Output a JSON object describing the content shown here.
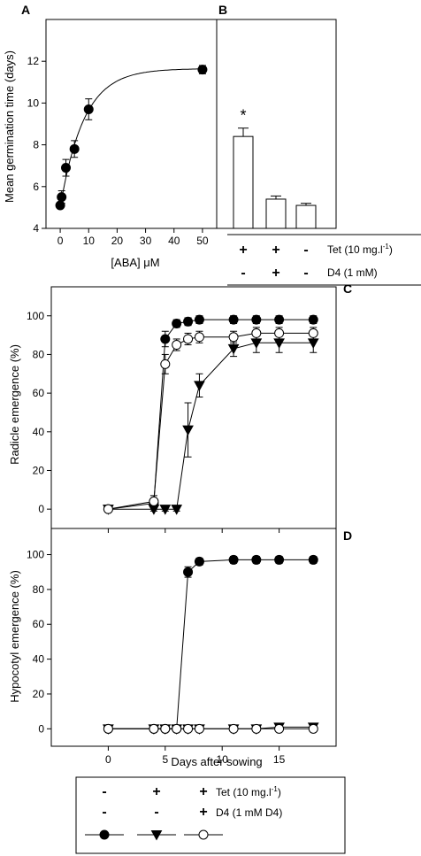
{
  "panel_letters": [
    "A",
    "B",
    "C",
    "D"
  ],
  "chart_data": [
    {
      "panel": "A",
      "type": "scatter",
      "xlabel": "[ABA] μM",
      "ylabel": "Mean germination time (days)",
      "xlim": [
        -5,
        55
      ],
      "ylim": [
        4,
        14
      ],
      "xticks": [
        0,
        10,
        20,
        30,
        40,
        50
      ],
      "yticks": [
        4,
        6,
        8,
        10,
        12
      ],
      "series": [
        {
          "marker": "filled-circle",
          "x": [
            0,
            0.5,
            2,
            5,
            10,
            50
          ],
          "y": [
            5.1,
            5.5,
            6.9,
            7.8,
            9.7,
            11.6
          ],
          "err": [
            0.1,
            0.3,
            0.4,
            0.4,
            0.5,
            0.2
          ],
          "fit": "saturating curve"
        }
      ],
      "grid": false
    },
    {
      "panel": "B",
      "type": "bar",
      "categories": [
        "Tet+ D4-",
        "Tet+ D4+",
        "Tet- D4-"
      ],
      "values": [
        8.4,
        5.4,
        5.1
      ],
      "err": [
        0.4,
        0.15,
        0.1
      ],
      "ylim": [
        4,
        14
      ],
      "significance": [
        "*",
        "",
        ""
      ],
      "treatment_table": {
        "rows": [
          {
            "label": "Tet (10 mg.l",
            "sup": "-1",
            "suffix": ")",
            "signs": [
              "+",
              "+",
              "-"
            ]
          },
          {
            "label": "D4 (1 mM)",
            "sup": "",
            "suffix": "",
            "signs": [
              "-",
              "+",
              "-"
            ]
          }
        ]
      }
    },
    {
      "panel": "C",
      "type": "line",
      "ylabel": "Radicle emergence (%)",
      "xlim": [
        -5,
        20
      ],
      "ylim": [
        -10,
        115
      ],
      "yticks": [
        0,
        20,
        40,
        60,
        80,
        100
      ],
      "series": [
        {
          "marker": "filled-circle",
          "x": [
            0,
            4,
            5,
            6,
            7,
            8,
            11,
            13,
            15,
            18
          ],
          "y": [
            0,
            3,
            88,
            96,
            97,
            98,
            98,
            98,
            98,
            98
          ],
          "err": [
            0,
            2,
            4,
            2,
            2,
            2,
            2,
            2,
            2,
            2
          ]
        },
        {
          "marker": "filled-triangle-down",
          "x": [
            0,
            4,
            5,
            6,
            7,
            8,
            11,
            13,
            15,
            18
          ],
          "y": [
            0,
            0,
            0,
            0,
            41,
            64,
            83,
            86,
            86,
            86
          ],
          "err": [
            0,
            1,
            1,
            1,
            14,
            6,
            4,
            5,
            5,
            5
          ]
        },
        {
          "marker": "open-circle",
          "x": [
            0,
            4,
            5,
            6,
            7,
            8,
            11,
            13,
            15,
            18
          ],
          "y": [
            0,
            4,
            75,
            85,
            88,
            89,
            89,
            91,
            91,
            91
          ],
          "err": [
            0,
            3,
            5,
            3,
            3,
            3,
            3,
            3,
            3,
            3
          ]
        }
      ]
    },
    {
      "panel": "D",
      "type": "line",
      "ylabel": "Hypocotyl emergence (%)",
      "xlabel": "Days after sowing",
      "xlim": [
        -5,
        20
      ],
      "ylim": [
        -10,
        115
      ],
      "xticks": [
        0,
        5,
        10,
        15
      ],
      "yticks": [
        0,
        20,
        40,
        60,
        80,
        100
      ],
      "series": [
        {
          "marker": "filled-circle",
          "x": [
            0,
            4,
            5,
            6,
            7,
            8,
            11,
            13,
            15,
            18
          ],
          "y": [
            0,
            0,
            0,
            0,
            90,
            96,
            97,
            97,
            97,
            97
          ],
          "err": [
            0,
            0,
            0,
            0,
            3,
            2,
            2,
            2,
            2,
            2
          ]
        },
        {
          "marker": "filled-triangle-down",
          "x": [
            0,
            4,
            5,
            6,
            7,
            8,
            11,
            13,
            15,
            18
          ],
          "y": [
            0,
            0,
            0,
            0,
            0,
            0,
            0,
            0,
            1,
            1
          ],
          "err": [
            0,
            0,
            0,
            0,
            0,
            0,
            0,
            0,
            1,
            1
          ]
        },
        {
          "marker": "open-circle",
          "x": [
            0,
            4,
            5,
            6,
            7,
            8,
            11,
            13,
            15,
            18
          ],
          "y": [
            0,
            0,
            0,
            0,
            0,
            0,
            0,
            0,
            0,
            0
          ],
          "err": [
            0,
            0,
            0,
            0,
            0,
            0,
            0,
            0,
            1,
            1
          ]
        }
      ]
    }
  ],
  "legend": {
    "rows": [
      {
        "label": "Tet (10 mg.l",
        "sup": "-1",
        "suffix": ")",
        "signs": [
          "-",
          "+",
          "+"
        ]
      },
      {
        "label": "D4 (1 mM D4)",
        "sup": "",
        "suffix": "",
        "signs": [
          "-",
          "-",
          "+"
        ]
      }
    ],
    "markers": [
      "filled-circle",
      "filled-triangle-down",
      "open-circle"
    ]
  }
}
